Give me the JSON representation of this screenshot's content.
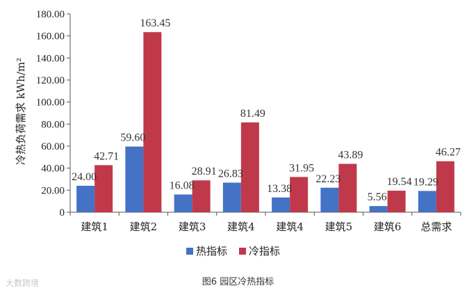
{
  "chart_data": {
    "type": "bar",
    "categories": [
      "建筑1",
      "建筑2",
      "建筑3",
      "建筑4",
      "建筑4",
      "建筑5",
      "建筑6",
      "总需求"
    ],
    "series": [
      {
        "name": "热指标",
        "color": "#4472c4",
        "values": [
          24.0,
          59.6,
          16.08,
          26.83,
          13.38,
          22.23,
          5.56,
          19.29
        ]
      },
      {
        "name": "冷指标",
        "color": "#c0394a",
        "values": [
          42.71,
          163.45,
          28.91,
          81.49,
          31.95,
          43.89,
          19.54,
          46.27
        ]
      }
    ],
    "data_labels": [
      [
        "24.00",
        "59.60",
        "16.08",
        "26.83",
        "13.38",
        "22.23",
        "5.56",
        "19.29"
      ],
      [
        "42.71",
        "163.45",
        "28.91",
        "81.49",
        "31.95",
        "43.89",
        "19.54",
        "46.27"
      ]
    ],
    "ylabel": "冷热负荷需求 kWh/m²",
    "ylim": [
      0,
      180
    ],
    "yticks": [
      "0",
      "20.00",
      "40.00",
      "60.00",
      "80.00",
      "100.00",
      "120.00",
      "140.00",
      "160.00",
      "180.00"
    ],
    "ytick_values": [
      0,
      20,
      40,
      60,
      80,
      100,
      120,
      140,
      160,
      180
    ],
    "grid": false,
    "legend_position": "bottom-center"
  },
  "caption": "图6 园区冷热指标",
  "watermark": "大数跨境"
}
